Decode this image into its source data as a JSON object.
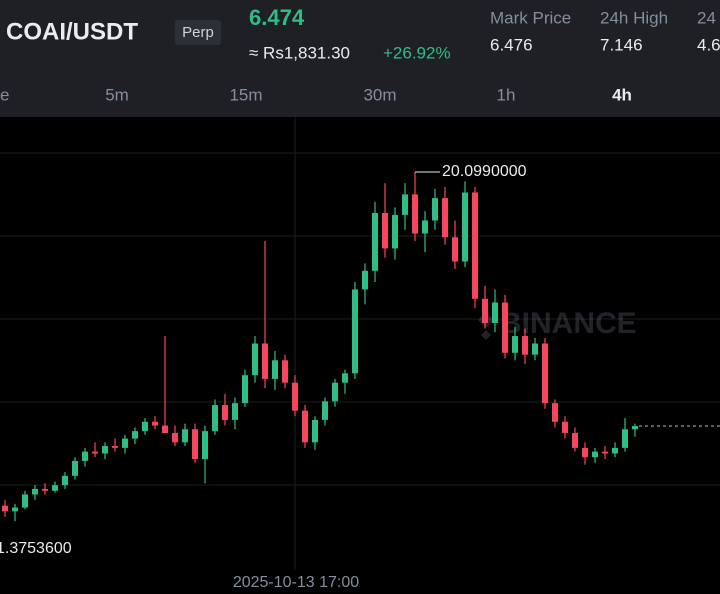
{
  "header": {
    "pair": "COAI/USDT",
    "badge": "Perp",
    "price": "6.474",
    "fiat_price": "≈ Rs1,831.30",
    "change": "+26.92%",
    "stats": [
      {
        "label": "Mark Price",
        "value": "6.476"
      },
      {
        "label": "24h High",
        "value": "7.146"
      },
      {
        "label": "24",
        "value": "4.6"
      }
    ]
  },
  "timeframes": [
    "e",
    "5m",
    "15m",
    "30m",
    "1h",
    "4h"
  ],
  "active_timeframe": 5,
  "chart_data": {
    "type": "candlestick",
    "ylim": [
      -1.25,
      23.05
    ],
    "up_color": "#2ebd85",
    "down_color": "#f6465d",
    "open": [
      2.2,
      1.9,
      2.1,
      2.8,
      3.1,
      3.0,
      3.3,
      3.8,
      4.6,
      5.1,
      5.0,
      5.4,
      5.3,
      5.8,
      6.2,
      6.7,
      6.5,
      6.1,
      5.6,
      6.3,
      4.7,
      6.2,
      7.6,
      6.8,
      7.7,
      9.2,
      10.9,
      9.0,
      10.0,
      8.8,
      7.3,
      5.6,
      6.8,
      7.8,
      8.8,
      9.3,
      13.8,
      14.8,
      17.9,
      16.0,
      17.8,
      18.9,
      16.8,
      17.5,
      18.7,
      16.6,
      15.3,
      19.0,
      13.3,
      12.0,
      13.1,
      10.4,
      11.3,
      10.3,
      10.9,
      7.7,
      6.7,
      6.1,
      5.3,
      4.8,
      5.1,
      5.0,
      5.3,
      6.3
    ],
    "high": [
      2.5,
      2.3,
      3.0,
      3.3,
      3.4,
      3.5,
      4.0,
      4.8,
      5.3,
      5.6,
      5.6,
      5.8,
      6.0,
      6.4,
      6.9,
      7.0,
      11.3,
      6.5,
      6.6,
      6.6,
      6.5,
      7.9,
      8.2,
      8.0,
      9.5,
      11.3,
      16.4,
      10.5,
      10.3,
      9.2,
      7.6,
      7.0,
      8.0,
      9.0,
      9.5,
      14.2,
      15.2,
      18.5,
      19.5,
      18.2,
      19.5,
      20.099,
      18.0,
      19.2,
      19.3,
      17.5,
      19.6,
      19.3,
      14.0,
      13.8,
      13.5,
      11.8,
      11.7,
      11.2,
      11.2,
      7.9,
      7.0,
      6.4,
      5.6,
      5.3,
      5.4,
      5.6,
      6.9,
      6.6
    ],
    "low": [
      1.6,
      1.37536,
      2.0,
      2.5,
      2.8,
      2.9,
      3.1,
      3.6,
      4.3,
      4.8,
      4.7,
      5.1,
      5.0,
      5.5,
      6.0,
      6.3,
      6.3,
      5.4,
      5.4,
      4.5,
      3.4,
      6.0,
      6.5,
      6.3,
      7.5,
      8.8,
      8.5,
      8.4,
      8.5,
      7.0,
      5.3,
      5.2,
      6.5,
      7.5,
      8.2,
      9.0,
      13.0,
      14.2,
      15.5,
      15.4,
      17.0,
      16.4,
      15.8,
      17.0,
      16.2,
      14.9,
      15.0,
      12.8,
      11.7,
      11.5,
      10.1,
      10.0,
      9.8,
      10.0,
      7.4,
      6.4,
      5.8,
      5.1,
      4.4,
      4.5,
      4.7,
      4.8,
      5.1,
      5.9
    ],
    "close": [
      1.9,
      2.1,
      2.8,
      3.1,
      3.0,
      3.3,
      3.8,
      4.6,
      5.1,
      5.0,
      5.4,
      5.3,
      5.8,
      6.2,
      6.7,
      6.5,
      6.1,
      5.6,
      6.3,
      4.7,
      6.2,
      7.6,
      6.8,
      7.7,
      9.2,
      10.9,
      9.0,
      10.0,
      8.8,
      7.3,
      5.6,
      6.8,
      7.8,
      8.8,
      9.3,
      13.8,
      14.8,
      17.9,
      16.0,
      17.8,
      18.9,
      16.8,
      17.5,
      18.7,
      16.6,
      15.3,
      19.0,
      13.3,
      12.0,
      13.1,
      10.4,
      11.3,
      10.3,
      10.9,
      7.7,
      6.7,
      6.1,
      5.3,
      4.8,
      5.1,
      5.0,
      5.3,
      6.3,
      6.474
    ],
    "max_label": "20.0990000",
    "min_label": "1.3753600",
    "x_label": "2025-10-13 17:00",
    "watermark": "BINANCE"
  }
}
